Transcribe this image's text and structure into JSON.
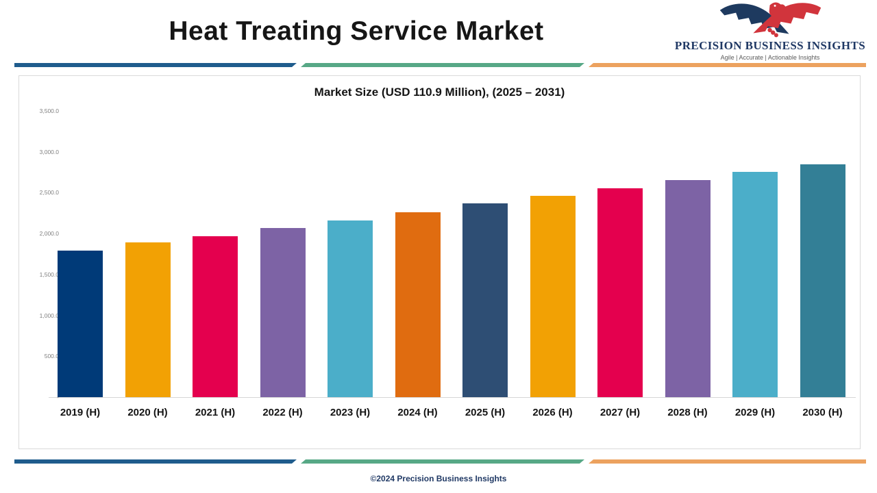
{
  "header": {
    "title": "Heat Treating Service Market",
    "logo": {
      "name": "PRECISION BUSINESS INSIGHTS",
      "tagline": "Agile | Accurate | Actionable Insights"
    }
  },
  "chart_data": {
    "type": "bar",
    "title": "Market Size (USD 110.9 Million), (2025 – 2031)",
    "categories": [
      "2019 (H)",
      "2020 (H)",
      "2021 (H)",
      "2022 (H)",
      "2023 (H)",
      "2024 (H)",
      "2025 (H)",
      "2026 (H)",
      "2027 (H)",
      "2028 (H)",
      "2029 (H)",
      "2030 (H)"
    ],
    "values": [
      1790,
      1890,
      1970,
      2070,
      2160,
      2260,
      2370,
      2460,
      2555,
      2655,
      2755,
      2845
    ],
    "bar_colors": [
      "#003a78",
      "#f2a104",
      "#e4004e",
      "#7d63a5",
      "#4baec9",
      "#e06c10",
      "#2e4e74",
      "#f2a104",
      "#e4004e",
      "#7d63a5",
      "#4baec9",
      "#337f96"
    ],
    "xlabel": "",
    "ylabel": "",
    "ylim": [
      0,
      3500
    ],
    "ytick_values": [
      3500,
      3000,
      2500,
      2000,
      1500,
      1000,
      500,
      0
    ],
    "ytick_labels": [
      "3,500.0",
      "3,000.0",
      "2,500.0",
      "2,000.0",
      "1,500.0",
      "1,000.0",
      "500.0",
      "-"
    ],
    "grid": false,
    "legend": "none"
  },
  "footer": {
    "copyright": "©2024 Precision Business Insights"
  },
  "colors": {
    "divider_blue": "#1f5c8d",
    "divider_green": "#57a886",
    "divider_orange": "#eca25f",
    "brand_navy": "#1f3864",
    "brand_red": "#d1343c"
  }
}
